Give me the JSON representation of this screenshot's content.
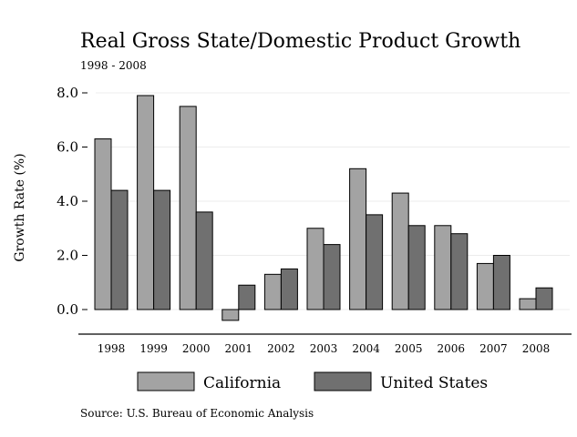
{
  "chart_data": {
    "type": "bar",
    "title": "Real Gross State/Domestic Product Growth",
    "subtitle": "1998 - 2008",
    "ylabel": "Growth Rate (%)",
    "xlabel": "",
    "source": "Source: U.S. Bureau of Economic Analysis",
    "categories": [
      "1998",
      "1999",
      "2000",
      "2001",
      "2002",
      "2003",
      "2004",
      "2005",
      "2006",
      "2007",
      "2008"
    ],
    "series": [
      {
        "name": "California",
        "values": [
          6.3,
          7.9,
          7.5,
          -0.4,
          1.3,
          3.0,
          5.2,
          4.3,
          3.1,
          1.7,
          0.4
        ]
      },
      {
        "name": "United States",
        "values": [
          4.4,
          4.4,
          3.6,
          0.9,
          1.5,
          2.4,
          3.5,
          3.1,
          2.8,
          2.0,
          0.8
        ]
      }
    ],
    "ylim": [
      -0.5,
      8.0
    ],
    "yticks": [
      "0.0",
      "2.0",
      "4.0",
      "6.0",
      "8.0"
    ],
    "ytick_values": [
      0,
      2,
      4,
      6,
      8
    ],
    "colors": {
      "California": "#a3a3a3",
      "United States": "#707070"
    },
    "grid": true,
    "legend_position": "bottom"
  }
}
